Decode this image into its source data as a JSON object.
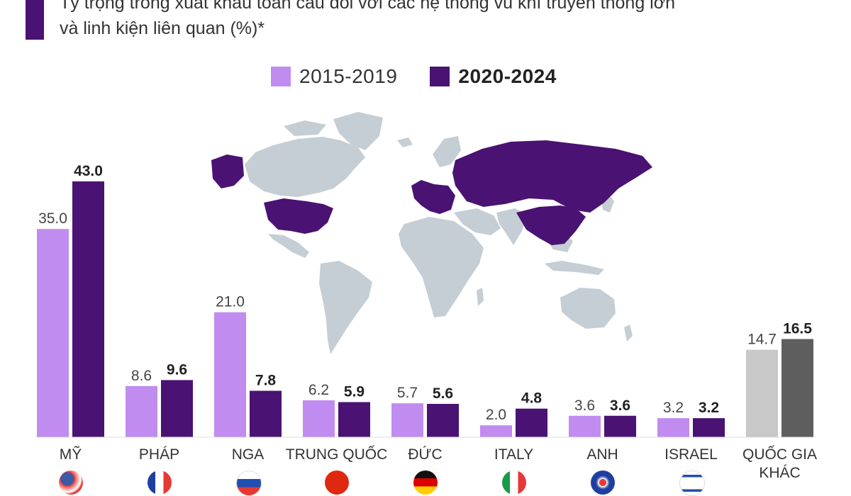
{
  "header": {
    "subtitle_line1": "Tỷ trọng trong xuất khẩu toàn cầu đối với các hệ thống vũ khí truyền thống lớn",
    "subtitle_line2": "và linh kiện liên quan (%)*"
  },
  "colors": {
    "accent": "#4a1272",
    "series_2015": "#c08cf0",
    "series_2020": "#4a1272",
    "other_2015": "#c8c8c8",
    "other_2020": "#5e5e5e",
    "map_base": "#c5ced4",
    "map_highlight": "#4a1272"
  },
  "map": {
    "highlighted_countries": [
      "Mỹ",
      "Pháp",
      "Nga",
      "Trung Quốc",
      "Đức",
      "Italy",
      "Anh",
      "Israel"
    ]
  },
  "chart_data": {
    "type": "bar",
    "categories": [
      "MỸ",
      "PHÁP",
      "NGA",
      "TRUNG QUỐC",
      "ĐỨC",
      "ITALY",
      "ANH",
      "ISRAEL",
      "QUỐC GIA KHÁC"
    ],
    "series": [
      {
        "name": "2015-2019",
        "values": [
          35.0,
          8.6,
          21.0,
          6.2,
          5.7,
          2.0,
          3.6,
          3.2,
          14.7
        ]
      },
      {
        "name": "2020-2024",
        "values": [
          43.0,
          9.6,
          7.8,
          5.9,
          5.6,
          4.8,
          3.6,
          3.2,
          16.5
        ]
      }
    ],
    "ylim": [
      0,
      43.0
    ],
    "grid": false,
    "legend": "top-center"
  },
  "flags": [
    "us-flag-icon",
    "france-flag-icon",
    "russia-flag-icon",
    "china-flag-icon",
    "germany-flag-icon",
    "italy-flag-icon",
    "uk-flag-icon",
    "israel-flag-icon"
  ]
}
